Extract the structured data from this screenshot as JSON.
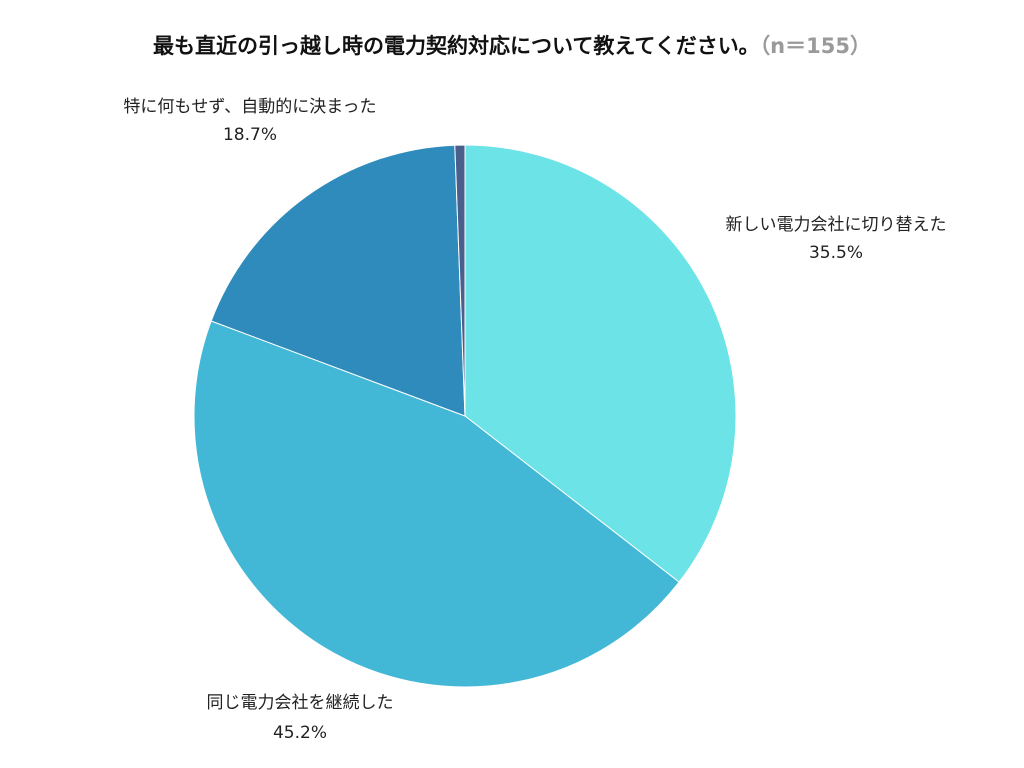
{
  "title": {
    "main": "最も直近の引っ越し時の電力契約対応について教えてください。",
    "sample": "（n＝155）"
  },
  "chart_data": {
    "type": "pie",
    "title": "最も直近の引っ越し時の電力契約対応について教えてください。（n＝155）",
    "start_angle_deg": 0,
    "direction": "clockwise",
    "slices": [
      {
        "label": "新しい電力会社に切り替えた",
        "value": 35.5,
        "value_label": "35.5%",
        "color": "#6ce3e7"
      },
      {
        "label": "同じ電力会社を継続した",
        "value": 45.2,
        "value_label": "45.2%",
        "color": "#43b7d6"
      },
      {
        "label": "特に何もせず、自動的に決まった",
        "value": 18.7,
        "value_label": "18.7%",
        "color": "#2e8bbb"
      },
      {
        "label": "",
        "value": 0.6,
        "value_label": "",
        "color": "#4a5f8c"
      }
    ]
  }
}
